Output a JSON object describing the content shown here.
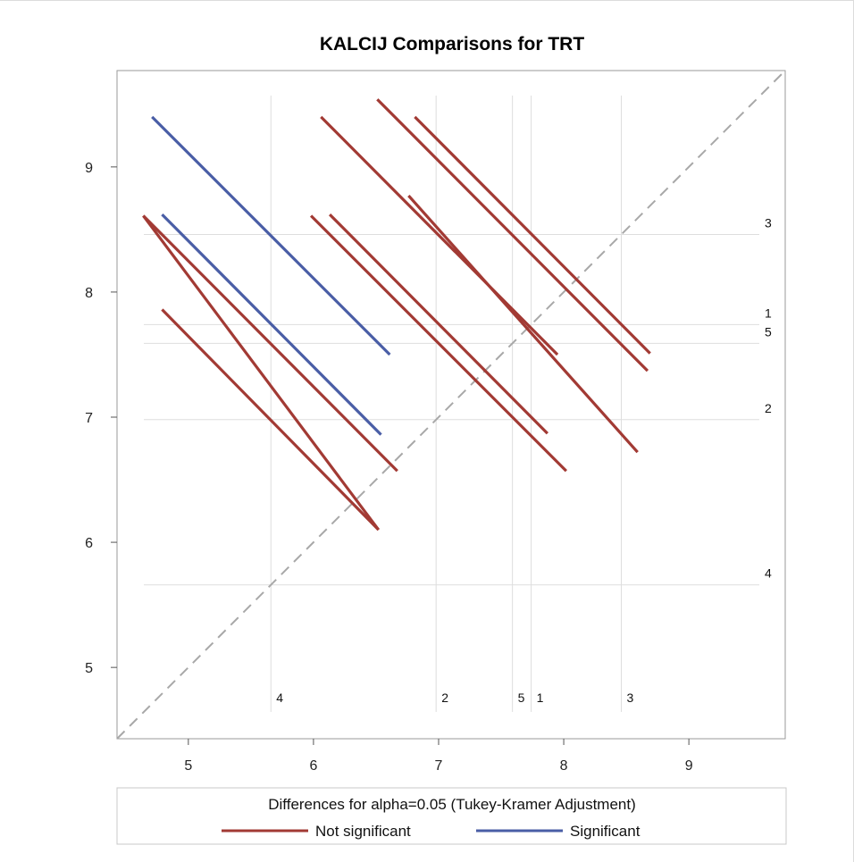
{
  "chart_data": {
    "type": "line",
    "title": "KALCIJ Comparisons for TRT",
    "xlim": [
      4.43,
      9.77
    ],
    "ylim": [
      4.43,
      9.77
    ],
    "xticks": [
      "5",
      "6",
      "7",
      "8",
      "9"
    ],
    "yticks": [
      "5",
      "6",
      "7",
      "8",
      "9"
    ],
    "reference_diagonal": true,
    "grid": false,
    "means": [
      {
        "level": "1",
        "value": 7.74
      },
      {
        "level": "2",
        "value": 6.98
      },
      {
        "level": "3",
        "value": 8.46
      },
      {
        "level": "4",
        "value": 5.66
      },
      {
        "level": "5",
        "value": 7.59
      }
    ],
    "series": [
      {
        "name": "Not significant",
        "color": "#a23a34",
        "segments": [
          [
            [
              4.64,
              8.61
            ],
            [
              6.52,
              6.1
            ]
          ],
          [
            [
              4.64,
              8.61
            ],
            [
              6.67,
              6.57
            ]
          ],
          [
            [
              4.79,
              7.86
            ],
            [
              6.52,
              6.1
            ]
          ],
          [
            [
              5.98,
              8.61
            ],
            [
              8.02,
              6.57
            ]
          ],
          [
            [
              6.13,
              8.62
            ],
            [
              7.87,
              6.87
            ]
          ],
          [
            [
              6.06,
              9.4
            ],
            [
              7.95,
              7.5
            ]
          ],
          [
            [
              6.51,
              9.54
            ],
            [
              8.67,
              7.37
            ]
          ],
          [
            [
              6.81,
              9.4
            ],
            [
              8.69,
              7.51
            ]
          ],
          [
            [
              6.76,
              8.77
            ],
            [
              8.59,
              6.72
            ]
          ]
        ]
      },
      {
        "name": "Significant",
        "color": "#4a5ea6",
        "segments": [
          [
            [
              4.71,
              9.4
            ],
            [
              6.61,
              7.5
            ]
          ],
          [
            [
              4.79,
              8.62
            ],
            [
              6.54,
              6.86
            ]
          ]
        ]
      }
    ],
    "legend": {
      "title": "Differences for alpha=0.05 (Tukey-Kramer Adjustment)",
      "items": [
        {
          "label": "Not significant",
          "color": "#a23a34"
        },
        {
          "label": "Significant",
          "color": "#4a5ea6"
        }
      ],
      "position": "bottom"
    }
  }
}
